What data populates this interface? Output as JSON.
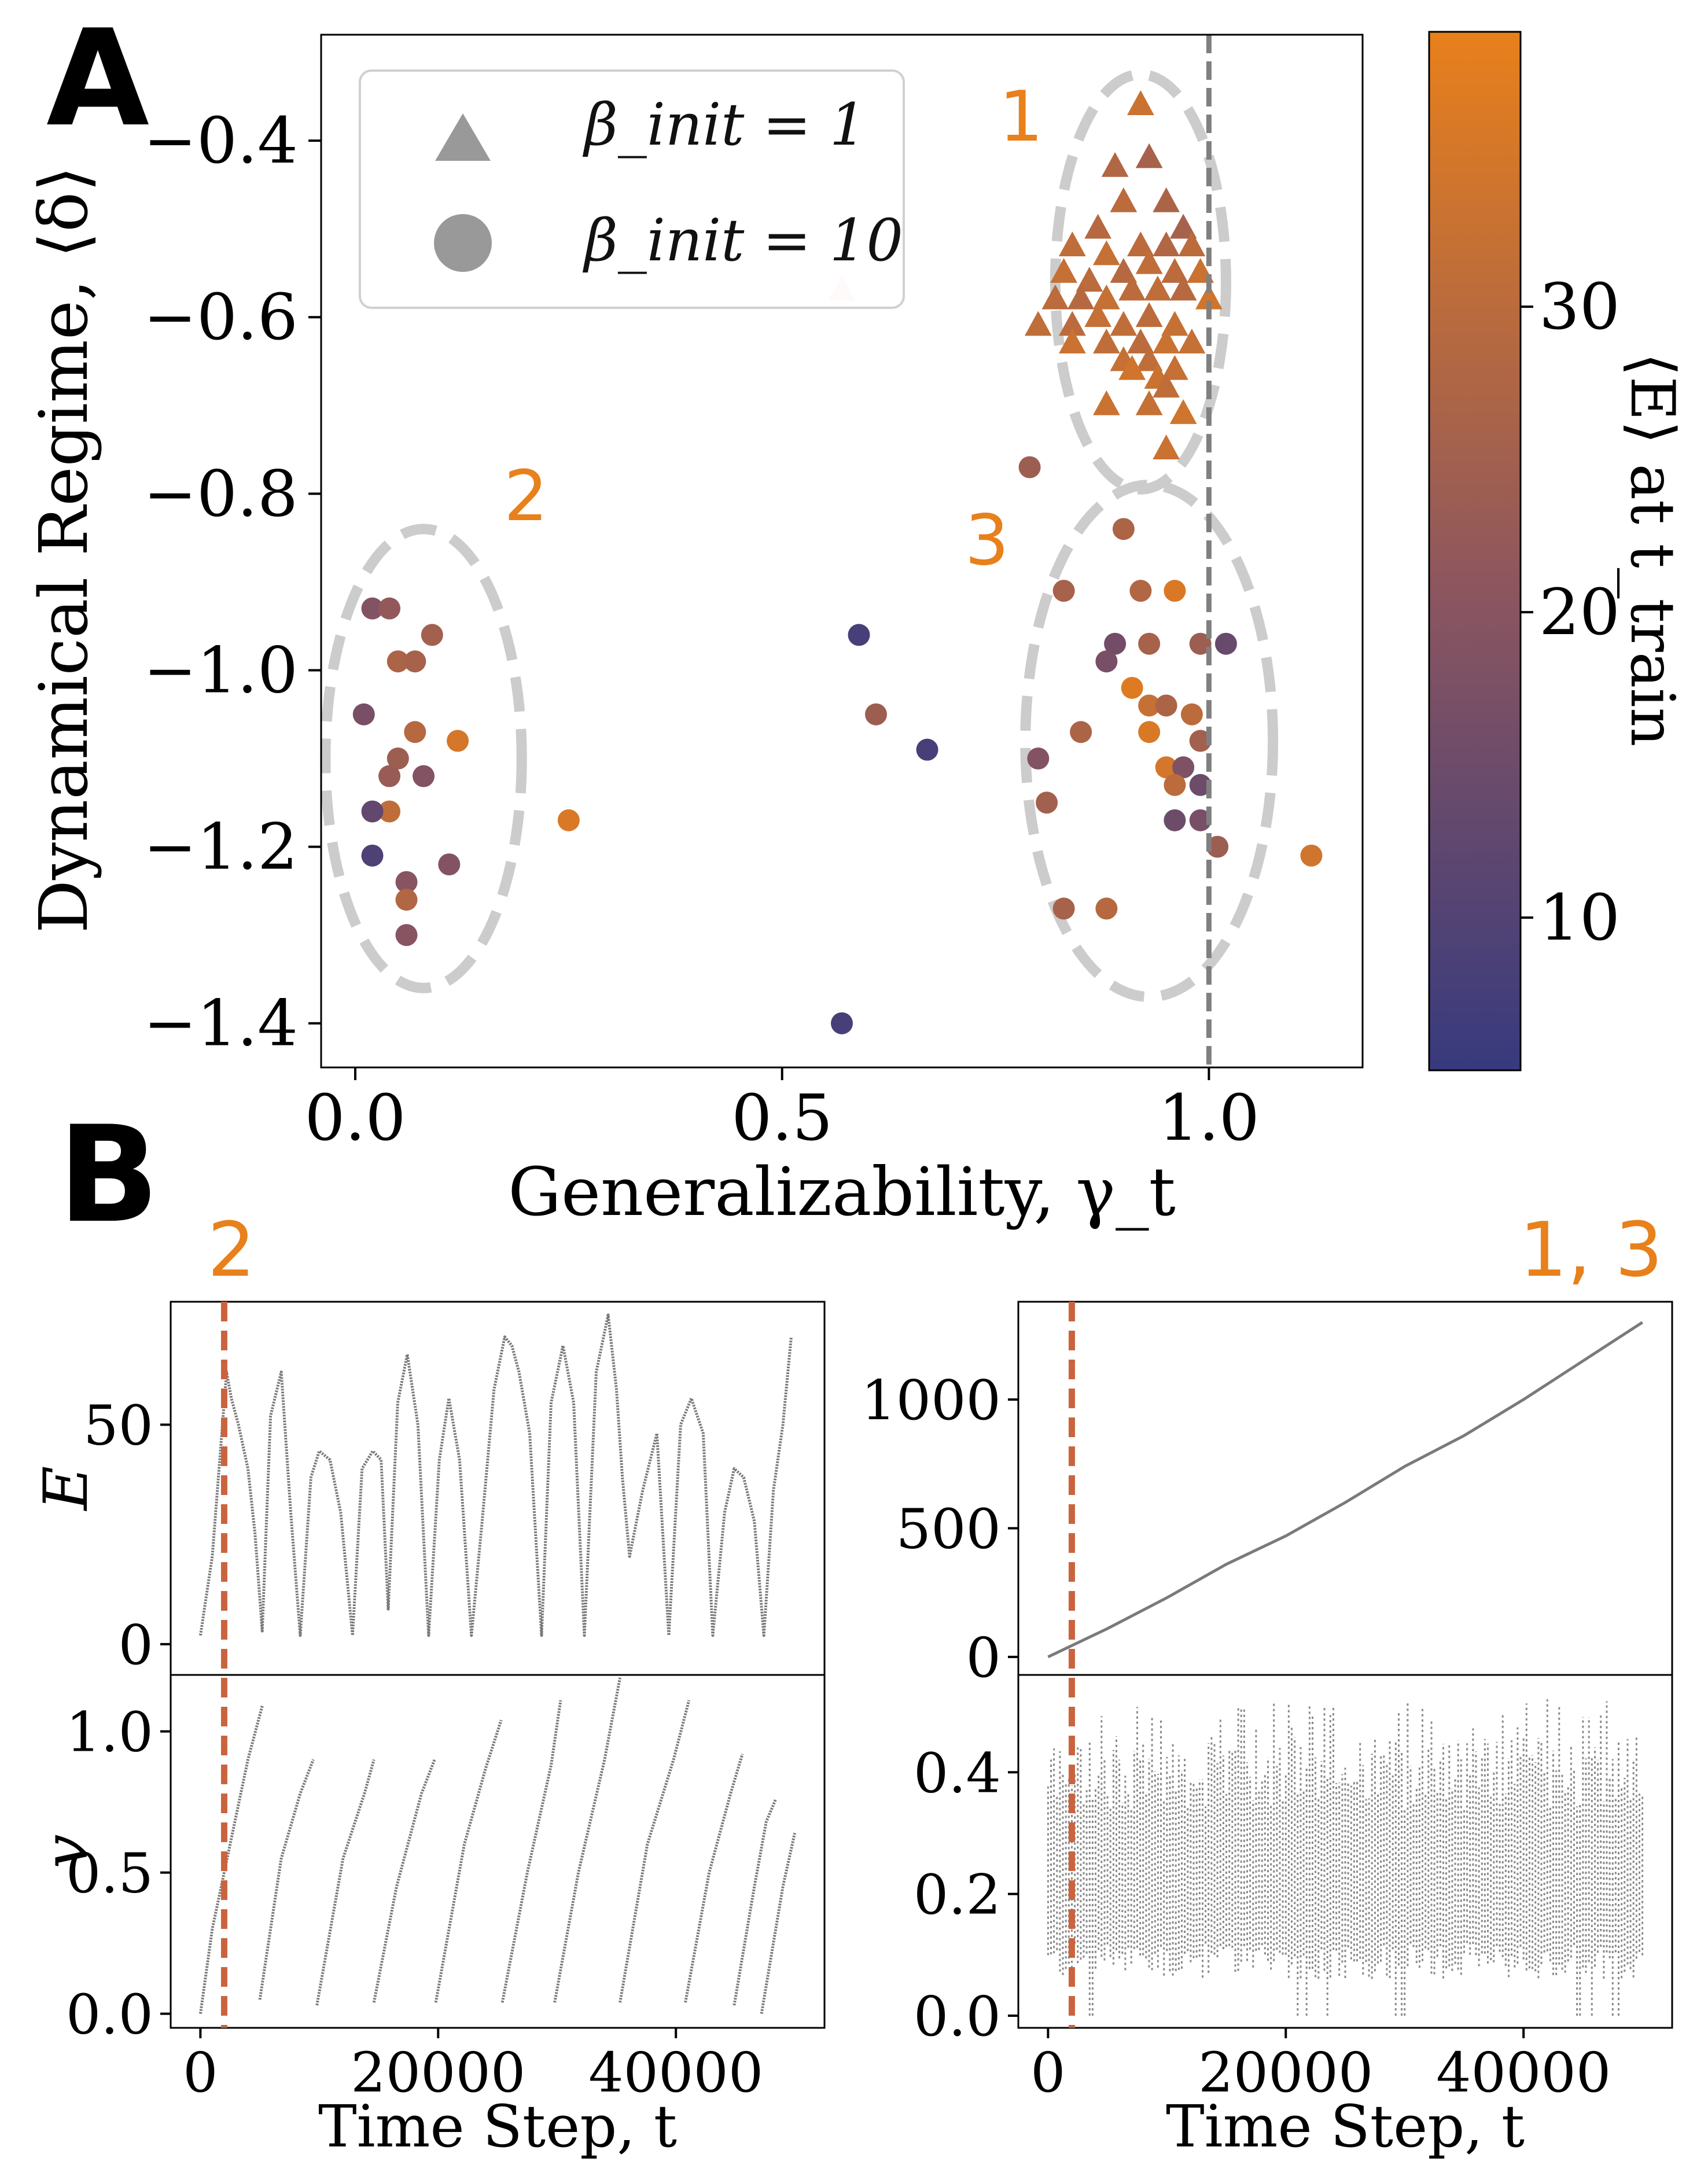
{
  "panel_labels": {
    "a": "A",
    "b": "B"
  },
  "colors": {
    "orange": "#e8801b",
    "navy": "#373a7e",
    "grey": "#808080",
    "ellipse": "#cccccc",
    "red_dash": "#c9643e"
  },
  "chart_data": [
    {
      "id": "panel-a",
      "type": "scatter",
      "xlabel": "Generalizability, γ_t",
      "ylabel": "Dynamical Regime, ⟨δ⟩",
      "xlim": [
        -0.04,
        1.18
      ],
      "ylim": [
        -1.45,
        -0.28
      ],
      "xticks": [
        0.0,
        0.5,
        1.0
      ],
      "xtick_labels": [
        "0.0",
        "0.5",
        "1.0"
      ],
      "yticks": [
        -0.4,
        -0.6,
        -0.8,
        -1.0,
        -1.2,
        -1.4
      ],
      "ytick_labels": [
        "−0.4",
        "−0.6",
        "−0.8",
        "−1.0",
        "−1.2",
        "−1.4"
      ],
      "vline_x": 1.0,
      "legend": {
        "position": "top-left",
        "entries": [
          {
            "marker": "triangle",
            "label": "β_init = 1"
          },
          {
            "marker": "circle",
            "label": "β_init = 10"
          }
        ]
      },
      "colorbar": {
        "label": "⟨E⟩ at t_train",
        "range": [
          5,
          39
        ],
        "ticks": [
          10,
          20,
          30
        ],
        "tick_labels": [
          "10",
          "20",
          "30"
        ],
        "colors": [
          "#373a7e",
          "#8a5560",
          "#e8801b"
        ]
      },
      "regions": [
        {
          "label": "1",
          "cx": 0.92,
          "cy": -0.56,
          "rx": 0.1,
          "ry": 0.235
        },
        {
          "label": "2",
          "cx": 0.08,
          "cy": -1.1,
          "rx": 0.115,
          "ry": 0.26
        },
        {
          "label": "3",
          "cx": 0.93,
          "cy": -1.08,
          "rx": 0.145,
          "ry": 0.29
        }
      ],
      "series": [
        {
          "name": "β_init = 1",
          "marker": "triangle",
          "points": [
            [
              0.92,
              -0.36,
              33
            ],
            [
              0.89,
              -0.43,
              28
            ],
            [
              0.93,
              -0.42,
              26
            ],
            [
              0.9,
              -0.47,
              30
            ],
            [
              0.95,
              -0.47,
              27
            ],
            [
              0.87,
              -0.5,
              29
            ],
            [
              0.97,
              -0.5,
              26
            ],
            [
              0.84,
              -0.52,
              31
            ],
            [
              0.88,
              -0.53,
              32
            ],
            [
              0.92,
              -0.52,
              30
            ],
            [
              0.95,
              -0.52,
              28
            ],
            [
              0.98,
              -0.52,
              30
            ],
            [
              0.83,
              -0.55,
              32
            ],
            [
              0.86,
              -0.56,
              30
            ],
            [
              0.9,
              -0.55,
              29
            ],
            [
              0.93,
              -0.54,
              31
            ],
            [
              0.96,
              -0.55,
              30
            ],
            [
              0.99,
              -0.55,
              33
            ],
            [
              0.82,
              -0.58,
              30
            ],
            [
              0.85,
              -0.58,
              29
            ],
            [
              0.88,
              -0.58,
              32
            ],
            [
              0.91,
              -0.57,
              30
            ],
            [
              0.94,
              -0.57,
              31
            ],
            [
              0.97,
              -0.57,
              29
            ],
            [
              1.0,
              -0.58,
              34
            ],
            [
              0.8,
              -0.61,
              31
            ],
            [
              0.84,
              -0.61,
              30
            ],
            [
              0.87,
              -0.6,
              32
            ],
            [
              0.9,
              -0.61,
              31
            ],
            [
              0.93,
              -0.6,
              30
            ],
            [
              0.96,
              -0.61,
              32
            ],
            [
              0.84,
              -0.63,
              33
            ],
            [
              0.88,
              -0.63,
              31
            ],
            [
              0.92,
              -0.63,
              30
            ],
            [
              0.95,
              -0.63,
              33
            ],
            [
              0.98,
              -0.63,
              32
            ],
            [
              0.9,
              -0.65,
              32
            ],
            [
              0.93,
              -0.65,
              31
            ],
            [
              0.91,
              -0.66,
              34
            ],
            [
              0.94,
              -0.67,
              33
            ],
            [
              0.96,
              -0.66,
              32
            ],
            [
              0.95,
              -0.68,
              31
            ],
            [
              0.88,
              -0.7,
              33
            ],
            [
              0.93,
              -0.7,
              32
            ],
            [
              0.97,
              -0.71,
              34
            ],
            [
              0.95,
              -0.75,
              33
            ],
            [
              0.57,
              -0.57,
              4
            ]
          ]
        },
        {
          "name": "β_init = 10",
          "marker": "circle",
          "points": [
            [
              0.02,
              -0.93,
              19
            ],
            [
              0.04,
              -0.93,
              22
            ],
            [
              0.05,
              -0.99,
              27
            ],
            [
              0.07,
              -0.99,
              26
            ],
            [
              0.09,
              -0.96,
              25
            ],
            [
              0.01,
              -1.05,
              17
            ],
            [
              0.07,
              -1.07,
              29
            ],
            [
              0.12,
              -1.08,
              35
            ],
            [
              0.05,
              -1.1,
              24
            ],
            [
              0.04,
              -1.12,
              23
            ],
            [
              0.08,
              -1.12,
              19
            ],
            [
              0.04,
              -1.16,
              31
            ],
            [
              0.02,
              -1.16,
              13
            ],
            [
              0.02,
              -1.21,
              9
            ],
            [
              0.11,
              -1.22,
              19
            ],
            [
              0.06,
              -1.24,
              20
            ],
            [
              0.06,
              -1.26,
              28
            ],
            [
              0.06,
              -1.3,
              20
            ],
            [
              0.25,
              -1.17,
              36
            ],
            [
              0.59,
              -0.96,
              8
            ],
            [
              0.61,
              -1.05,
              24
            ],
            [
              0.67,
              -1.09,
              8
            ],
            [
              0.57,
              -1.4,
              8
            ],
            [
              0.79,
              -0.77,
              24
            ],
            [
              0.9,
              -0.84,
              27
            ],
            [
              0.83,
              -0.91,
              26
            ],
            [
              0.92,
              -0.91,
              28
            ],
            [
              0.96,
              -0.91,
              36
            ],
            [
              0.89,
              -0.97,
              16
            ],
            [
              0.93,
              -0.97,
              26
            ],
            [
              0.99,
              -0.97,
              24
            ],
            [
              1.02,
              -0.97,
              14
            ],
            [
              0.88,
              -0.99,
              17
            ],
            [
              0.91,
              -1.02,
              37
            ],
            [
              0.93,
              -1.04,
              32
            ],
            [
              0.95,
              -1.04,
              27
            ],
            [
              0.98,
              -1.05,
              30
            ],
            [
              0.85,
              -1.07,
              27
            ],
            [
              0.93,
              -1.07,
              36
            ],
            [
              0.99,
              -1.08,
              25
            ],
            [
              0.95,
              -1.11,
              35
            ],
            [
              0.97,
              -1.11,
              18
            ],
            [
              0.99,
              -1.13,
              15
            ],
            [
              0.96,
              -1.13,
              30
            ],
            [
              0.8,
              -1.1,
              19
            ],
            [
              0.81,
              -1.15,
              25
            ],
            [
              0.99,
              -1.17,
              17
            ],
            [
              0.96,
              -1.17,
              15
            ],
            [
              1.01,
              -1.2,
              24
            ],
            [
              1.12,
              -1.21,
              34
            ],
            [
              0.83,
              -1.27,
              26
            ],
            [
              0.88,
              -1.27,
              29
            ]
          ]
        }
      ]
    },
    {
      "id": "panel-b-left",
      "type": "line",
      "annotation": "2",
      "xlabel": "Time Step, t",
      "xlim": [
        -2500,
        52500
      ],
      "xticks": [
        0,
        20000,
        40000
      ],
      "xtick_labels": [
        "0",
        "20000",
        "40000"
      ],
      "vline_x": 2000,
      "subplots": [
        {
          "ylabel": "E",
          "ylim": [
            -7,
            78
          ],
          "yticks": [
            0,
            50
          ],
          "ytick_labels": [
            "0",
            "50"
          ],
          "x": [
            0,
            1000,
            1800,
            2200,
            2600,
            3200,
            4000,
            4600,
            5200,
            5900,
            6800,
            7600,
            8400,
            9300,
            10000,
            10900,
            11800,
            12800,
            13600,
            14500,
            15200,
            15800,
            16600,
            17400,
            18300,
            19200,
            20100,
            20900,
            21800,
            22800,
            23700,
            24700,
            25600,
            26200,
            26800,
            27700,
            28700,
            29500,
            30500,
            31400,
            32300,
            33300,
            34300,
            35000,
            35500,
            36100,
            37200,
            38400,
            39400,
            40400,
            41300,
            42300,
            43100,
            44100,
            44900,
            45700,
            46600,
            47400,
            48200,
            49000,
            49700
          ],
          "y": [
            2,
            20,
            48,
            62,
            56,
            50,
            40,
            25,
            3,
            52,
            62,
            30,
            2,
            38,
            44,
            42,
            30,
            2,
            40,
            44,
            42,
            8,
            55,
            66,
            50,
            2,
            42,
            56,
            42,
            2,
            28,
            58,
            70,
            68,
            62,
            48,
            2,
            55,
            68,
            55,
            2,
            62,
            75,
            58,
            38,
            20,
            35,
            48,
            2,
            50,
            56,
            48,
            2,
            30,
            40,
            38,
            28,
            2,
            35,
            50,
            70
          ]
        },
        {
          "ylabel": "v",
          "ylim": [
            -0.05,
            1.2
          ],
          "yticks": [
            0.0,
            0.5,
            1.0
          ],
          "ytick_labels": [
            "0.0",
            "0.5",
            "1.0"
          ],
          "segments": [
            [
              [
                0,
                0.0
              ],
              [
                1000,
                0.3
              ],
              [
                2500,
                0.6
              ],
              [
                4000,
                0.9
              ],
              [
                5200,
                1.09
              ]
            ],
            [
              [
                5000,
                0.05
              ],
              [
                6800,
                0.55
              ],
              [
                8400,
                0.78
              ],
              [
                9500,
                0.9
              ]
            ],
            [
              [
                9800,
                0.03
              ],
              [
                12000,
                0.55
              ],
              [
                13800,
                0.78
              ],
              [
                14600,
                0.9
              ]
            ],
            [
              [
                14600,
                0.04
              ],
              [
                16500,
                0.45
              ],
              [
                18600,
                0.78
              ],
              [
                19700,
                0.9
              ]
            ],
            [
              [
                19800,
                0.04
              ],
              [
                22200,
                0.6
              ],
              [
                24000,
                0.87
              ],
              [
                25300,
                1.04
              ]
            ],
            [
              [
                25400,
                0.04
              ],
              [
                27500,
                0.5
              ],
              [
                29500,
                0.88
              ],
              [
                30300,
                1.11
              ]
            ],
            [
              [
                29800,
                0.04
              ],
              [
                31800,
                0.5
              ],
              [
                34000,
                0.9
              ],
              [
                35300,
                1.19
              ]
            ],
            [
              [
                35300,
                0.04
              ],
              [
                37600,
                0.6
              ],
              [
                39800,
                0.9
              ],
              [
                41100,
                1.11
              ]
            ],
            [
              [
                40800,
                0.04
              ],
              [
                42800,
                0.5
              ],
              [
                44600,
                0.78
              ],
              [
                45600,
                0.92
              ]
            ],
            [
              [
                44900,
                0.03
              ],
              [
                46600,
                0.45
              ],
              [
                47600,
                0.68
              ],
              [
                48400,
                0.76
              ]
            ],
            [
              [
                47200,
                0.0
              ],
              [
                49000,
                0.45
              ],
              [
                50000,
                0.64
              ]
            ]
          ]
        }
      ]
    },
    {
      "id": "panel-b-right",
      "type": "line",
      "annotation": "1, 3",
      "xlabel": "Time Step, t",
      "xlim": [
        -2500,
        52500
      ],
      "xticks": [
        0,
        20000,
        40000
      ],
      "xtick_labels": [
        "0",
        "20000",
        "40000"
      ],
      "vline_x": 2000,
      "subplots": [
        {
          "ylabel": "",
          "ylim": [
            -70,
            1380
          ],
          "yticks": [
            0,
            500,
            1000
          ],
          "ytick_labels": [
            "0",
            "500",
            "1000"
          ],
          "x": [
            0,
            5000,
            10000,
            15000,
            20000,
            25000,
            30000,
            35000,
            40000,
            45000,
            50000
          ],
          "y": [
            0,
            110,
            230,
            360,
            470,
            600,
            740,
            860,
            1000,
            1150,
            1300
          ]
        },
        {
          "ylabel": "",
          "ylim": [
            -0.02,
            0.56
          ],
          "yticks": [
            0.0,
            0.2,
            0.4
          ],
          "ytick_labels": [
            "0.0",
            "0.2",
            "0.4"
          ],
          "band": {
            "x_start": 0,
            "x_end": 50000,
            "dense_low": 0.06,
            "dense_high": 0.42,
            "outlier_low": 0.0,
            "outlier_high": 0.52
          }
        }
      ]
    }
  ]
}
